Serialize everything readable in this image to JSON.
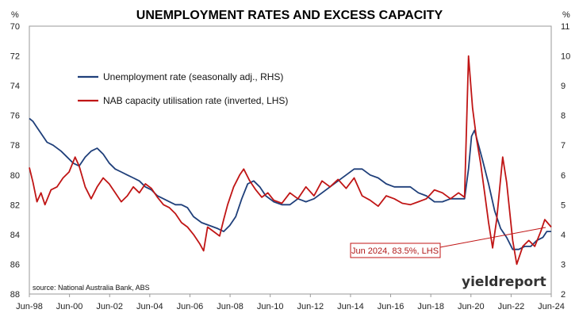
{
  "chart_data": {
    "type": "line",
    "title": "UNEMPLOYMENT RATES AND EXCESS CAPACITY",
    "left_unit": "%",
    "right_unit": "%",
    "source": "source: National Australia Bank, ABS",
    "brand": "yieldreport",
    "x_ticks": [
      "Jun-98",
      "Jun-00",
      "Jun-02",
      "Jun-04",
      "Jun-06",
      "Jun-08",
      "Jun-10",
      "Jun-12",
      "Jun-14",
      "Jun-16",
      "Jun-18",
      "Jun-20",
      "Jun-22",
      "Jun-24"
    ],
    "x_range": [
      1998.42,
      2024.42
    ],
    "left_axis": {
      "ticks": [
        "70",
        "72",
        "74",
        "76",
        "78",
        "80",
        "82",
        "84",
        "86",
        "88"
      ],
      "range": [
        70,
        88
      ],
      "inverted": true
    },
    "right_axis": {
      "ticks": [
        "11",
        "10",
        "9",
        "8",
        "7",
        "6",
        "5",
        "4",
        "3",
        "2"
      ],
      "range": [
        2,
        11
      ]
    },
    "annotation": "Jun 2024, 83.5%, LHS",
    "series": [
      {
        "name": "Unemployment rate (seasonally adj., RHS)",
        "axis": "right",
        "color": "#1f3f7a",
        "points": [
          [
            1998.42,
            7.9
          ],
          [
            1998.6,
            7.8
          ],
          [
            1998.8,
            7.6
          ],
          [
            1999.0,
            7.4
          ],
          [
            1999.3,
            7.1
          ],
          [
            1999.6,
            7.0
          ],
          [
            2000.0,
            6.8
          ],
          [
            2000.3,
            6.6
          ],
          [
            2000.6,
            6.4
          ],
          [
            2000.9,
            6.3
          ],
          [
            2001.2,
            6.6
          ],
          [
            2001.5,
            6.8
          ],
          [
            2001.8,
            6.9
          ],
          [
            2002.1,
            6.7
          ],
          [
            2002.4,
            6.4
          ],
          [
            2002.7,
            6.2
          ],
          [
            2003.0,
            6.1
          ],
          [
            2003.3,
            6.0
          ],
          [
            2003.6,
            5.9
          ],
          [
            2003.9,
            5.8
          ],
          [
            2004.2,
            5.6
          ],
          [
            2004.5,
            5.5
          ],
          [
            2004.8,
            5.3
          ],
          [
            2005.1,
            5.2
          ],
          [
            2005.4,
            5.1
          ],
          [
            2005.7,
            5.0
          ],
          [
            2006.0,
            5.0
          ],
          [
            2006.3,
            4.9
          ],
          [
            2006.6,
            4.6
          ],
          [
            2007.0,
            4.4
          ],
          [
            2007.4,
            4.3
          ],
          [
            2007.8,
            4.2
          ],
          [
            2008.1,
            4.1
          ],
          [
            2008.4,
            4.3
          ],
          [
            2008.7,
            4.6
          ],
          [
            2009.0,
            5.2
          ],
          [
            2009.3,
            5.7
          ],
          [
            2009.6,
            5.8
          ],
          [
            2009.9,
            5.6
          ],
          [
            2010.2,
            5.3
          ],
          [
            2010.6,
            5.1
          ],
          [
            2011.0,
            5.0
          ],
          [
            2011.4,
            5.0
          ],
          [
            2011.8,
            5.2
          ],
          [
            2012.2,
            5.1
          ],
          [
            2012.6,
            5.2
          ],
          [
            2013.0,
            5.4
          ],
          [
            2013.4,
            5.6
          ],
          [
            2013.8,
            5.8
          ],
          [
            2014.2,
            6.0
          ],
          [
            2014.6,
            6.2
          ],
          [
            2015.0,
            6.2
          ],
          [
            2015.4,
            6.0
          ],
          [
            2015.8,
            5.9
          ],
          [
            2016.2,
            5.7
          ],
          [
            2016.6,
            5.6
          ],
          [
            2017.0,
            5.6
          ],
          [
            2017.4,
            5.6
          ],
          [
            2017.8,
            5.4
          ],
          [
            2018.2,
            5.3
          ],
          [
            2018.6,
            5.1
          ],
          [
            2019.0,
            5.1
          ],
          [
            2019.4,
            5.2
          ],
          [
            2019.8,
            5.2
          ],
          [
            2020.1,
            5.2
          ],
          [
            2020.3,
            6.2
          ],
          [
            2020.45,
            7.3
          ],
          [
            2020.6,
            7.5
          ],
          [
            2020.8,
            7.0
          ],
          [
            2021.0,
            6.5
          ],
          [
            2021.3,
            5.7
          ],
          [
            2021.6,
            4.8
          ],
          [
            2021.9,
            4.2
          ],
          [
            2022.2,
            3.9
          ],
          [
            2022.5,
            3.5
          ],
          [
            2022.8,
            3.5
          ],
          [
            2023.1,
            3.6
          ],
          [
            2023.4,
            3.6
          ],
          [
            2023.7,
            3.8
          ],
          [
            2024.0,
            3.9
          ],
          [
            2024.2,
            4.1
          ],
          [
            2024.42,
            4.1
          ]
        ]
      },
      {
        "name": "NAB capacity utilisation rate (inverted, LHS)",
        "axis": "left",
        "color": "#c01515",
        "points": [
          [
            1998.42,
            79.5
          ],
          [
            1998.6,
            80.5
          ],
          [
            1998.8,
            81.8
          ],
          [
            1999.0,
            81.2
          ],
          [
            1999.2,
            82.0
          ],
          [
            1999.5,
            81.0
          ],
          [
            1999.8,
            80.8
          ],
          [
            2000.1,
            80.2
          ],
          [
            2000.4,
            79.8
          ],
          [
            2000.7,
            78.8
          ],
          [
            2000.9,
            79.4
          ],
          [
            2001.2,
            80.8
          ],
          [
            2001.5,
            81.6
          ],
          [
            2001.8,
            80.8
          ],
          [
            2002.1,
            80.2
          ],
          [
            2002.4,
            80.6
          ],
          [
            2002.7,
            81.2
          ],
          [
            2003.0,
            81.8
          ],
          [
            2003.3,
            81.4
          ],
          [
            2003.6,
            80.8
          ],
          [
            2003.9,
            81.2
          ],
          [
            2004.2,
            80.6
          ],
          [
            2004.5,
            80.9
          ],
          [
            2004.8,
            81.5
          ],
          [
            2005.1,
            82.0
          ],
          [
            2005.4,
            82.2
          ],
          [
            2005.7,
            82.6
          ],
          [
            2006.0,
            83.2
          ],
          [
            2006.3,
            83.5
          ],
          [
            2006.6,
            84.0
          ],
          [
            2006.9,
            84.6
          ],
          [
            2007.1,
            85.1
          ],
          [
            2007.3,
            83.5
          ],
          [
            2007.6,
            83.8
          ],
          [
            2007.9,
            84.1
          ],
          [
            2008.1,
            83.0
          ],
          [
            2008.3,
            82.0
          ],
          [
            2008.6,
            80.8
          ],
          [
            2008.9,
            80.0
          ],
          [
            2009.1,
            79.6
          ],
          [
            2009.4,
            80.4
          ],
          [
            2009.7,
            81.0
          ],
          [
            2010.0,
            81.5
          ],
          [
            2010.3,
            81.2
          ],
          [
            2010.6,
            81.7
          ],
          [
            2011.0,
            81.9
          ],
          [
            2011.4,
            81.2
          ],
          [
            2011.8,
            81.6
          ],
          [
            2012.2,
            80.8
          ],
          [
            2012.6,
            81.4
          ],
          [
            2013.0,
            80.4
          ],
          [
            2013.4,
            80.8
          ],
          [
            2013.8,
            80.3
          ],
          [
            2014.2,
            80.9
          ],
          [
            2014.6,
            80.2
          ],
          [
            2015.0,
            81.4
          ],
          [
            2015.4,
            81.7
          ],
          [
            2015.8,
            82.1
          ],
          [
            2016.2,
            81.4
          ],
          [
            2016.6,
            81.6
          ],
          [
            2017.0,
            81.9
          ],
          [
            2017.4,
            82.0
          ],
          [
            2017.8,
            81.8
          ],
          [
            2018.2,
            81.6
          ],
          [
            2018.6,
            81.0
          ],
          [
            2019.0,
            81.2
          ],
          [
            2019.4,
            81.6
          ],
          [
            2019.8,
            81.2
          ],
          [
            2020.1,
            81.5
          ],
          [
            2020.3,
            72.0
          ],
          [
            2020.5,
            75.5
          ],
          [
            2020.7,
            77.6
          ],
          [
            2020.9,
            79.2
          ],
          [
            2021.1,
            81.2
          ],
          [
            2021.3,
            83.2
          ],
          [
            2021.5,
            84.9
          ],
          [
            2021.7,
            83.0
          ],
          [
            2022.0,
            78.8
          ],
          [
            2022.2,
            80.5
          ],
          [
            2022.5,
            84.4
          ],
          [
            2022.7,
            86.0
          ],
          [
            2023.0,
            84.8
          ],
          [
            2023.3,
            84.4
          ],
          [
            2023.6,
            84.8
          ],
          [
            2023.9,
            83.8
          ],
          [
            2024.1,
            83.0
          ],
          [
            2024.42,
            83.5
          ]
        ]
      }
    ]
  }
}
